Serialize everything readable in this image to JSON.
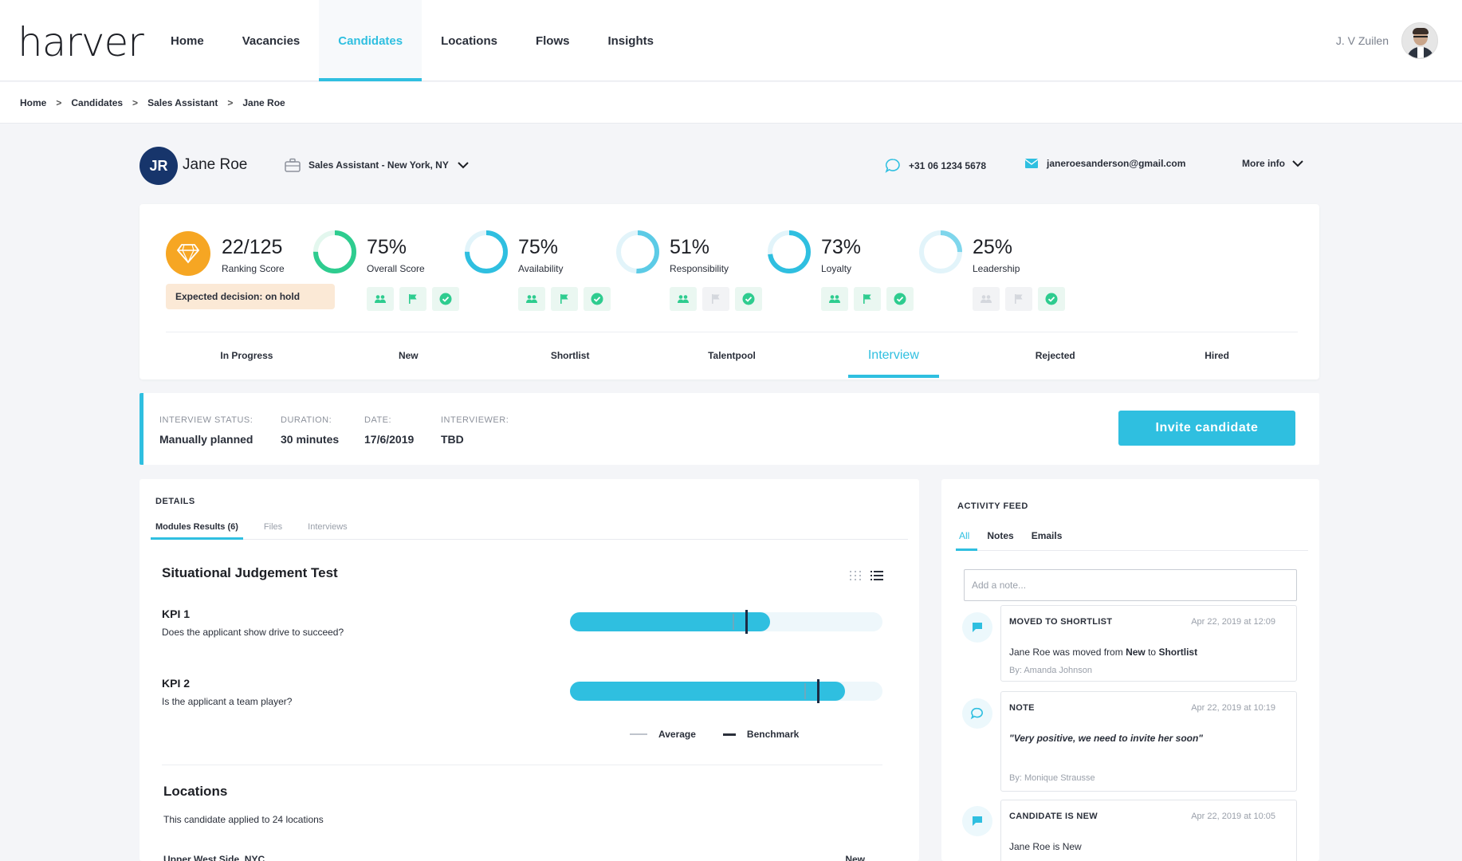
{
  "app": {
    "logo": "harver",
    "nav": [
      "Home",
      "Vacancies",
      "Candidates",
      "Locations",
      "Flows",
      "Insights"
    ],
    "active_nav": "Candidates",
    "user_name": "J. V Zuilen"
  },
  "breadcrumb": [
    "Home",
    "Candidates",
    "Sales Assistant",
    "Jane Roe"
  ],
  "candidate": {
    "initials": "JR",
    "name": "Jane Roe",
    "job": "Sales Assistant - New York, NY",
    "phone": "+31 06 1234 5678",
    "email": "janeroesanderson@gmail.com",
    "more_info": "More info"
  },
  "ranking": {
    "value": "22/125",
    "label": "Ranking Score",
    "decision": "Expected decision: on hold"
  },
  "metrics": [
    {
      "value": "75%",
      "label": "Overall Score",
      "pct": 75,
      "color": "#2ecc8f",
      "track": "#e3f7ee",
      "badges": [
        true,
        true,
        true
      ]
    },
    {
      "value": "75%",
      "label": "Availability",
      "pct": 75,
      "color": "#2fbfe0",
      "track": "#e2f4fa",
      "badges": [
        true,
        true,
        true
      ]
    },
    {
      "value": "51%",
      "label": "Responsibility",
      "pct": 51,
      "color": "#5ccbe6",
      "track": "#e2f4fa",
      "badges": [
        true,
        false,
        true
      ]
    },
    {
      "value": "73%",
      "label": "Loyalty",
      "pct": 73,
      "color": "#2fbfe0",
      "track": "#e2f4fa",
      "badges": [
        true,
        true,
        true
      ]
    },
    {
      "value": "25%",
      "label": "Leadership",
      "pct": 25,
      "color": "#7fd6ec",
      "track": "#e2f4fa",
      "badges": [
        false,
        false,
        true
      ]
    }
  ],
  "stages": [
    "In Progress",
    "New",
    "Shortlist",
    "Talentpool",
    "Interview",
    "Rejected",
    "Hired"
  ],
  "active_stage": "Interview",
  "interview": {
    "status_label": "INTERVIEW STATUS:",
    "status": "Manually planned",
    "duration_label": "DURATION:",
    "duration": "30 minutes",
    "date_label": "DATE:",
    "date": "17/6/2019",
    "interviewer_label": "INTERVIEWER:",
    "interviewer": "TBD",
    "invite_label": "Invite candidate"
  },
  "details": {
    "title": "DETAILS",
    "tabs": [
      "Modules Results (6)",
      "Files",
      "Interviews"
    ],
    "module_title": "Situational Judgement Test",
    "kpis": [
      {
        "title": "KPI 1",
        "question": "Does the applicant show drive to succeed?",
        "score": 0.64,
        "average": 0.52,
        "benchmark": 0.56
      },
      {
        "title": "KPI 2",
        "question": "Is the applicant a team player?",
        "score": 0.88,
        "average": 0.75,
        "benchmark": 0.79
      }
    ],
    "legend_average": "Average",
    "legend_benchmark": "Benchmark",
    "locations_title": "Locations",
    "locations_text": "This candidate applied to 24 locations",
    "location_row": "Upper West Side, NYC",
    "location_status": "New"
  },
  "feed": {
    "title": "ACTIVITY FEED",
    "tabs": [
      "All",
      "Notes",
      "Emails"
    ],
    "note_placeholder": "Add a note...",
    "items": [
      {
        "type": "MOVED TO SHORTLIST",
        "date": "Apr 22, 2019 at 12:09",
        "text_pre": "Jane Roe was moved from ",
        "from": "New",
        "mid": " to ",
        "to": "Shortlist",
        "by": "By: Amanda Johnson"
      },
      {
        "type": "NOTE",
        "date": "Apr 22, 2019 at 10:19",
        "quote": "\"Very positive, we need to invite her soon\"",
        "by": "By: Monique Strausse"
      },
      {
        "type": "CANDIDATE IS NEW",
        "date": "Apr 22, 2019 at 10:05",
        "text": "Jane Roe is New"
      }
    ]
  }
}
